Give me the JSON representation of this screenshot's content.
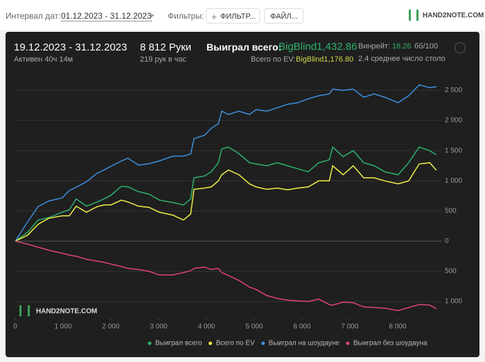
{
  "toolbar": {
    "date_label": "Интервал дат:",
    "date_range": "01.12.2023 - 31.12.2023",
    "filters_label": "Фильтры:",
    "filter_button": "ФИЛЬТР...",
    "file_button": "ФАЙЛ..."
  },
  "logo": "HAND2NOTE.COM",
  "stats": {
    "period": "19.12.2023 - 31.12.2023",
    "active": "Активен 40ч 14м",
    "hands": "8 812 Руки",
    "hands_per_hour": "219 рук в час",
    "won_label": "Выиграл всего:",
    "won_value": "BigBlind1,432.86",
    "ev_label": "Всего по EV:",
    "ev_value": "BigBlind1,176.80",
    "winrate_label": "Винрейт:",
    "winrate_value": "16.26",
    "winrate_unit": "бб/100",
    "tables": "2.4 среднее число столо"
  },
  "chart_data": {
    "type": "line",
    "x": [
      0,
      260,
      480,
      700,
      985,
      1130,
      1275,
      1490,
      1710,
      1855,
      2000,
      2220,
      2360,
      2580,
      2800,
      3015,
      3300,
      3520,
      3670,
      3740,
      3960,
      4100,
      4250,
      4320,
      4460,
      4680,
      4900,
      5040,
      5260,
      5480,
      5700,
      5910,
      6130,
      6350,
      6570,
      6640,
      6860,
      7070,
      7290,
      7510,
      7730,
      8010,
      8230,
      8450,
      8670,
      8812
    ],
    "series": [
      {
        "name": "Выиграл всего",
        "color": "#2db36b",
        "values": [
          0,
          150,
          350,
          390,
          480,
          520,
          700,
          580,
          650,
          700,
          760,
          910,
          900,
          820,
          780,
          680,
          640,
          600,
          700,
          1050,
          1080,
          1150,
          1300,
          1530,
          1560,
          1450,
          1300,
          1280,
          1250,
          1300,
          1250,
          1200,
          1150,
          1300,
          1350,
          1560,
          1400,
          1500,
          1300,
          1250,
          1150,
          1100,
          1300,
          1560,
          1500,
          1432
        ]
      },
      {
        "name": "Всего по EV",
        "color": "#f0f046",
        "values": [
          0,
          100,
          280,
          380,
          420,
          420,
          580,
          480,
          570,
          600,
          600,
          680,
          650,
          580,
          560,
          480,
          430,
          350,
          450,
          860,
          880,
          900,
          1000,
          1100,
          1180,
          1100,
          950,
          900,
          860,
          880,
          850,
          880,
          900,
          1000,
          1000,
          1250,
          1100,
          1250,
          1050,
          1050,
          1000,
          950,
          1000,
          1280,
          1300,
          1176
        ]
      },
      {
        "name": "Выиграл на шоудауне",
        "color": "#3d8fe0",
        "values": [
          0,
          320,
          575,
          665,
          720,
          840,
          895,
          985,
          1125,
          1180,
          1240,
          1330,
          1375,
          1260,
          1285,
          1330,
          1410,
          1410,
          1445,
          1700,
          1755,
          1870,
          1950,
          2155,
          2100,
          2155,
          2100,
          2180,
          2155,
          2210,
          2270,
          2295,
          2360,
          2410,
          2440,
          2520,
          2500,
          2520,
          2385,
          2440,
          2385,
          2295,
          2410,
          2590,
          2545,
          2560
        ]
      },
      {
        "name": "Выиграл без шоудауна",
        "color": "#e0447a",
        "values": [
          0,
          -50,
          -100,
          -150,
          -200,
          -230,
          -250,
          -300,
          -330,
          -350,
          -380,
          -420,
          -450,
          -470,
          -500,
          -560,
          -560,
          -520,
          -490,
          -450,
          -430,
          -470,
          -450,
          -520,
          -570,
          -650,
          -760,
          -800,
          -900,
          -950,
          -980,
          -990,
          -1000,
          -960,
          -1050,
          -1060,
          -1010,
          -1020,
          -1090,
          -1100,
          -1110,
          -1150,
          -1100,
          -1050,
          -1060,
          -1120
        ]
      }
    ],
    "xlim": [
      0,
      8900
    ],
    "ylim": [
      -1280,
      2850
    ],
    "xticks": [
      0,
      {
        "value": 1000,
        "label": "1 000"
      },
      {
        "value": 2000,
        "label": "2 000"
      },
      {
        "value": 3000,
        "label": "3 000"
      },
      {
        "value": 4000,
        "label": "4 000"
      },
      {
        "value": 5000,
        "label": "5 000"
      },
      {
        "value": 6000,
        "label": "6 000"
      },
      {
        "value": 7000,
        "label": "7 000"
      },
      {
        "value": 8000,
        "label": "8 000"
      }
    ],
    "yticks": [
      {
        "value": -1000,
        "label": "1 000"
      },
      {
        "value": -500,
        "label": "500"
      },
      0,
      500,
      {
        "value": 1000,
        "label": "1 000"
      },
      {
        "value": 1500,
        "label": "1 500"
      },
      {
        "value": 2000,
        "label": "2 000"
      },
      {
        "value": 2500,
        "label": "2 500"
      }
    ],
    "grid": true
  }
}
